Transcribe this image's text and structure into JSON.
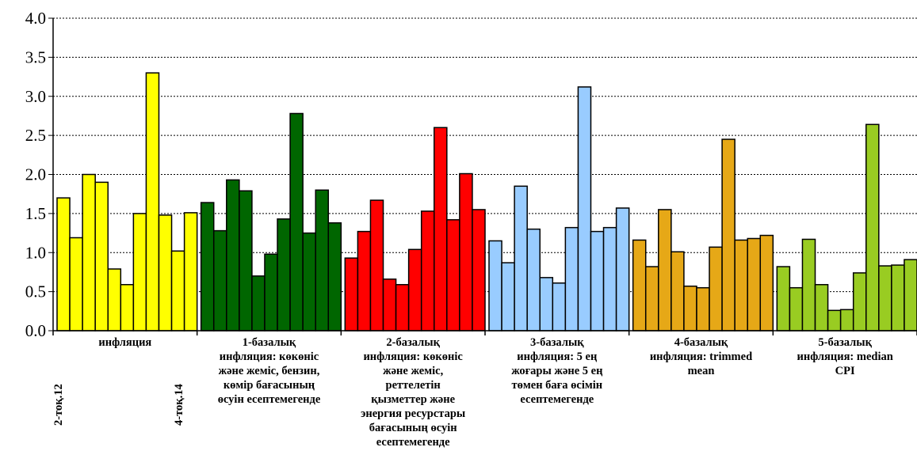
{
  "chart_data": {
    "type": "bar",
    "ylim": [
      0,
      4.0
    ],
    "y_ticks": [
      "0.0",
      "0.5",
      "1.0",
      "1.5",
      "2.0",
      "2.5",
      "3.0",
      "3.5",
      "4.0"
    ],
    "grid": "horizontal dashed",
    "groups": [
      {
        "label": "инфляция",
        "color": "#ffff00",
        "values": [
          1.7,
          1.19,
          2.0,
          1.9,
          0.79,
          0.59,
          1.5,
          3.3,
          1.48,
          1.02,
          1.51
        ]
      },
      {
        "label": "1-базалық\nинфляция: көкөніс\nжәне жеміс, бензин,\nкөмір бағасының\nөсуін есептемегенде",
        "color": "#006600",
        "values": [
          1.64,
          1.28,
          1.93,
          1.79,
          0.7,
          0.98,
          1.43,
          2.78,
          1.25,
          1.8,
          1.38
        ]
      },
      {
        "label": "2-базалық\nинфляция: көкөніс\nжәне жеміс,\nреттелетін\nқызметтер және\nэнергия ресурстары\nбағасының өсуін\nесептемегенде",
        "color": "#ff0000",
        "values": [
          0.93,
          1.27,
          1.67,
          0.66,
          0.59,
          1.04,
          1.53,
          2.6,
          1.42,
          2.01,
          1.55
        ]
      },
      {
        "label": "3-базалық\nинфляция:  5 ең\nжоғары және 5 ең\nтөмен баға өсімін\nесептемегенде",
        "color": "#99ccff",
        "values": [
          1.15,
          0.87,
          1.85,
          1.3,
          0.68,
          0.61,
          1.32,
          3.12,
          1.27,
          1.32,
          1.57
        ]
      },
      {
        "label": "4-базалық\nинфляция: trimmed\nmean",
        "color": "#e6a817",
        "values": [
          1.16,
          0.82,
          1.55,
          1.01,
          0.57,
          0.55,
          1.07,
          2.45,
          1.16,
          1.18,
          1.22
        ]
      },
      {
        "label": "5-базалық\nинфляция: median\nCPI",
        "color": "#99cc22",
        "values": [
          0.82,
          0.55,
          1.17,
          0.59,
          0.26,
          0.27,
          0.74,
          2.64,
          0.83,
          0.84,
          0.91
        ]
      }
    ],
    "x_rotated_labels": [
      "2-тоқ.12",
      "4-тоқ.14"
    ]
  }
}
